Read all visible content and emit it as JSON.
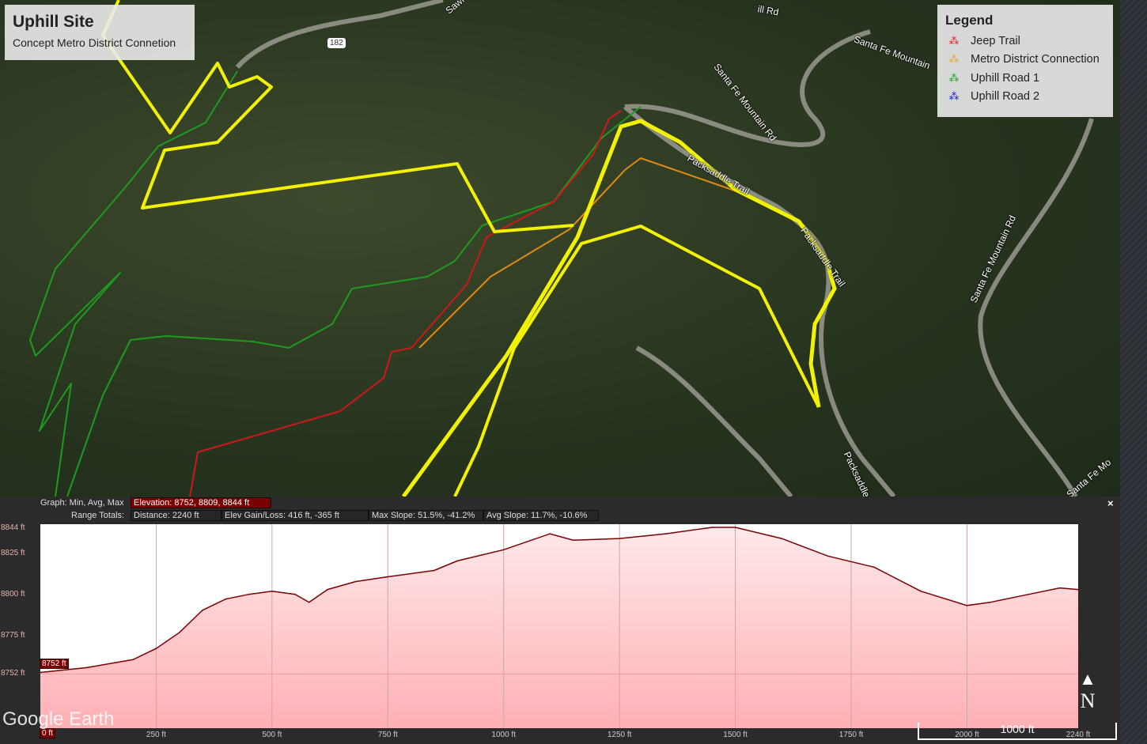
{
  "title": {
    "heading": "Uphill Site",
    "subtitle": "Concept Metro District Connetion"
  },
  "legend": {
    "title": "Legend",
    "items": [
      {
        "label": "Jeep Trail",
        "color": "#e02020"
      },
      {
        "label": "Metro District Connection",
        "color": "#e8a030"
      },
      {
        "label": "Uphill Road 1",
        "color": "#20a020"
      },
      {
        "label": "Uphill Road 2",
        "color": "#1020d0"
      }
    ]
  },
  "map_labels": {
    "road1": "Santa Fe Mountain Rd",
    "road2": "Santa Fe Mountain Rd",
    "road3": "Santa Fe Mountain Rd",
    "road4": "Santa Fe Mountain",
    "trail1": "Packsaddle Trail",
    "trail2": "Packsaddle Trail",
    "trail3": "Packsaddle Tr",
    "road5": "Santa Fe Mo",
    "saw": "Sawm",
    "shield": "182",
    "mill": "ill Rd"
  },
  "profile": {
    "graph_label": "Graph: Min, Avg, Max",
    "elevation": "Elevation: 8752, 8809, 8844 ft",
    "range_label": "Range Totals:",
    "distance": "Distance: 2240 ft",
    "elev_gain_loss": "Elev Gain/Loss: 416 ft, -365 ft",
    "max_slope": "Max Slope: 51.5%, -41.2%",
    "avg_slope": "Avg Slope: 11.7%, -10.6%",
    "close": "×",
    "start_marker": "8752 ft",
    "start_x_marker": "0 ft"
  },
  "branding": {
    "logo": "Google Earth",
    "scale": "1000 ft",
    "north": "N"
  },
  "chart_data": {
    "type": "area",
    "xlabel": "",
    "ylabel": "",
    "x_ticks": [
      "0 ft",
      "250 ft",
      "500 ft",
      "750 ft",
      "1000 ft",
      "1250 ft",
      "1500 ft",
      "1750 ft",
      "2000 ft",
      "2240 ft"
    ],
    "y_ticks": [
      "8844 ft",
      "8825 ft",
      "8800 ft",
      "8775 ft",
      "8752 ft"
    ],
    "xlim": [
      0,
      2240
    ],
    "ylim": [
      8718,
      8846
    ],
    "fill_color": "#ffb6b9",
    "line_color": "#7a0000",
    "x": [
      0,
      100,
      200,
      250,
      300,
      350,
      400,
      450,
      500,
      550,
      580,
      620,
      680,
      750,
      850,
      900,
      1000,
      1050,
      1100,
      1150,
      1250,
      1350,
      1450,
      1500,
      1600,
      1700,
      1800,
      1900,
      2000,
      2050,
      2100,
      2150,
      2200,
      2240
    ],
    "y": [
      8753,
      8756,
      8761,
      8768,
      8778,
      8792,
      8799,
      8802,
      8804,
      8802,
      8797,
      8805,
      8810,
      8813,
      8817,
      8823,
      8830,
      8835,
      8840,
      8836,
      8837,
      8840,
      8844,
      8844,
      8837,
      8826,
      8819,
      8804,
      8795,
      8797,
      8800,
      8803,
      8806,
      8805
    ]
  }
}
